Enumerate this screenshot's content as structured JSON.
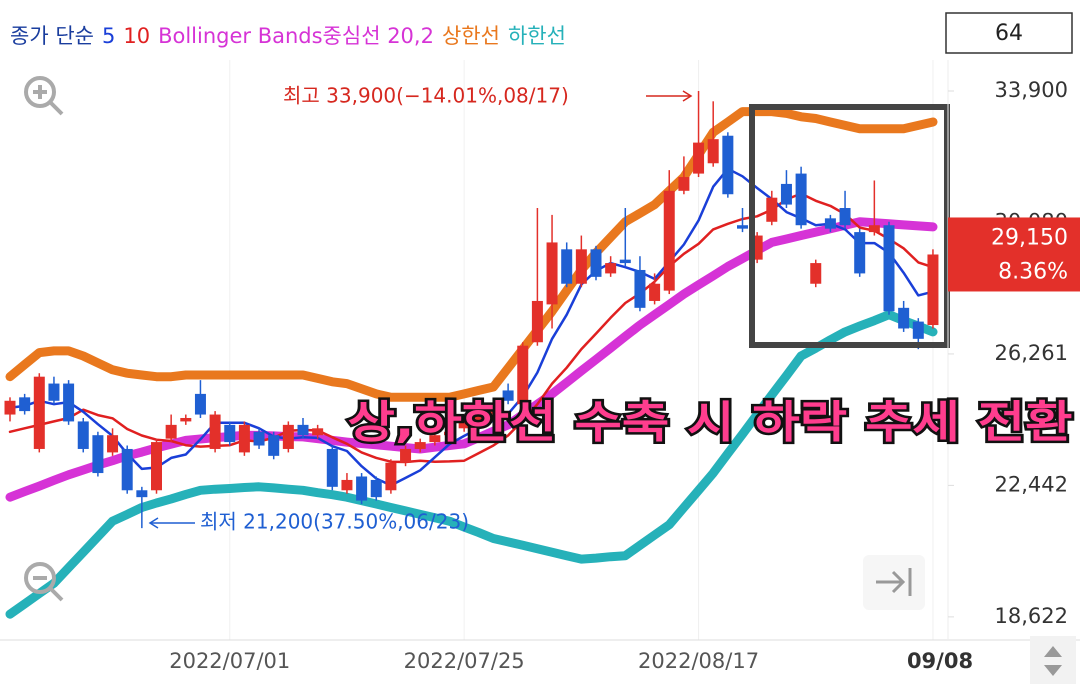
{
  "chart_data": {
    "type": "candlestick",
    "legend_prefix": "종가 단순",
    "categories": [
      null,
      null,
      null,
      null,
      null,
      null,
      null,
      null,
      null,
      null,
      null,
      null,
      null,
      null,
      null,
      "2022/07/01",
      null,
      null,
      null,
      null,
      null,
      null,
      null,
      null,
      null,
      null,
      null,
      null,
      null,
      null,
      null,
      "2022/07/25",
      null,
      null,
      null,
      null,
      null,
      null,
      null,
      null,
      null,
      null,
      null,
      null,
      null,
      null,
      null,
      "2022/08/17",
      null,
      null,
      null,
      null,
      null,
      null,
      null,
      null,
      null,
      null,
      null,
      null,
      null,
      null,
      null,
      "09/08"
    ],
    "open": [
      24500,
      25000,
      23500,
      25400,
      25400,
      24300,
      23900,
      23400,
      23500,
      22300,
      22300,
      23800,
      24300,
      25100,
      23500,
      24200,
      23400,
      24000,
      23900,
      23500,
      24200,
      23900,
      23500,
      22300,
      22700,
      22600,
      22300,
      23100,
      23500,
      23700,
      23900,
      24100,
      24300,
      24500,
      25200,
      24800,
      26600,
      27700,
      29300,
      28300,
      29300,
      28600,
      29000,
      28700,
      27800,
      28100,
      31000,
      31500,
      31800,
      32600,
      30000,
      29000,
      30100,
      31200,
      31500,
      28300,
      30200,
      30500,
      29800,
      29800,
      30000,
      27600,
      27200,
      27100
    ],
    "high": [
      25000,
      25100,
      25700,
      25600,
      25500,
      24400,
      24000,
      24100,
      23600,
      22400,
      23800,
      24500,
      24500,
      25500,
      24600,
      24300,
      24300,
      24100,
      24000,
      24300,
      24400,
      24200,
      23600,
      22800,
      22800,
      22700,
      23200,
      23600,
      23800,
      24000,
      24100,
      24400,
      24700,
      24900,
      25400,
      26600,
      30500,
      30300,
      29500,
      29700,
      29400,
      29100,
      30500,
      29100,
      28600,
      31600,
      32000,
      33900,
      33600,
      32700,
      30500,
      29800,
      31000,
      31600,
      31700,
      29000,
      30300,
      31000,
      29900,
      31300,
      30100,
      27800,
      27300,
      29300
    ],
    "low": [
      24300,
      24500,
      23400,
      24800,
      24200,
      23400,
      22700,
      23300,
      22200,
      21200,
      22200,
      23700,
      24200,
      24400,
      23400,
      23600,
      23300,
      23500,
      23200,
      23400,
      23800,
      23800,
      22300,
      22200,
      21900,
      22000,
      22200,
      23000,
      23400,
      23600,
      23800,
      24000,
      24200,
      24400,
      24800,
      24700,
      26500,
      27000,
      28200,
      28200,
      28400,
      28500,
      28800,
      27500,
      27700,
      28000,
      30900,
      31400,
      31700,
      30800,
      29800,
      28900,
      30000,
      30500,
      29900,
      28200,
      29800,
      29900,
      28500,
      29700,
      27400,
      26900,
      26400,
      27000
    ],
    "close": [
      24900,
      24600,
      25600,
      24900,
      24300,
      23500,
      22800,
      23900,
      22300,
      22100,
      23700,
      24200,
      24400,
      24500,
      24500,
      23700,
      24200,
      23600,
      23300,
      24200,
      23900,
      24100,
      22400,
      22600,
      22000,
      22100,
      23100,
      23500,
      23700,
      23900,
      24000,
      24300,
      24600,
      24800,
      24900,
      26500,
      27800,
      29500,
      28300,
      29300,
      28500,
      28900,
      28900,
      27600,
      28300,
      31000,
      31400,
      32400,
      32500,
      30900,
      29900,
      29700,
      30800,
      30600,
      30000,
      28900,
      29900,
      30000,
      28600,
      30000,
      27500,
      27000,
      26700,
      29150
    ],
    "up_color": "#e3302a",
    "down_color": "#1f5fd2",
    "series": [
      {
        "name": "5",
        "color": "#1a3fd8",
        "values": [
          24700,
          24750,
          24900,
          24800,
          24860,
          24580,
          24220,
          23880,
          23360,
          22920,
          22960,
          23240,
          23340,
          23780,
          24260,
          24260,
          24260,
          24100,
          23860,
          23800,
          23840,
          23820,
          23580,
          23440,
          23000,
          22640,
          22440,
          22660,
          22880,
          23260,
          23640,
          23880,
          24100,
          24320,
          24520,
          25020,
          25720,
          26700,
          27400,
          28280,
          28680,
          28900,
          28780,
          28640,
          28440,
          28940,
          29440,
          30140,
          31120,
          31640,
          31420,
          31080,
          30760,
          30380,
          30200,
          30000,
          30040,
          29880,
          29480,
          29480,
          29200,
          28620,
          27960,
          28070
        ]
      },
      {
        "name": "10",
        "color": "#e02020",
        "values": [
          24000,
          24100,
          24200,
          24300,
          24400,
          24640,
          24485,
          24390,
          24080,
          23890,
          23770,
          23730,
          23610,
          23570,
          23590,
          23610,
          23750,
          23720,
          23820,
          24030,
          24050,
          24040,
          23840,
          23650,
          23400,
          23240,
          23130,
          23120,
          23160,
          23130,
          23140,
          23160,
          23380,
          23600,
          23890,
          24330,
          24800,
          25400,
          25860,
          26400,
          26850,
          27310,
          27740,
          28020,
          28360,
          28810,
          29170,
          29460,
          29880,
          30040,
          30180,
          30260,
          30450,
          30750,
          30920,
          30710,
          30560,
          30320,
          29930,
          29840,
          29600,
          29330,
          28920,
          28780
        ]
      },
      {
        "name": "Bollinger Bands중심선 20,2",
        "color": "#d633d6",
        "values": [
          22100,
          22260,
          22420,
          22590,
          22750,
          22890,
          23030,
          23160,
          23300,
          23410,
          23530,
          23640,
          23750,
          23790,
          23830,
          23860,
          23900,
          23890,
          23880,
          23860,
          23850,
          23800,
          23750,
          23700,
          23660,
          23620,
          23580,
          23540,
          23500,
          23550,
          23600,
          23650,
          23830,
          24020,
          24200,
          24500,
          24800,
          25100,
          25430,
          25770,
          26100,
          26430,
          26770,
          27100,
          27400,
          27700,
          28000,
          28270,
          28530,
          28800,
          29030,
          29270,
          29500,
          29600,
          29700,
          29800,
          29900,
          30000,
          30100,
          30070,
          30040,
          30010,
          29980,
          29950
        ]
      },
      {
        "name": "상한선",
        "color": "#e9781e",
        "values": [
          25600,
          25950,
          26300,
          26350,
          26350,
          26200,
          26000,
          25800,
          25700,
          25650,
          25600,
          25600,
          25650,
          25650,
          25650,
          25650,
          25650,
          25650,
          25650,
          25650,
          25650,
          25550,
          25450,
          25400,
          25250,
          25100,
          25000,
          25000,
          25000,
          25000,
          25000,
          25100,
          25200,
          25300,
          25850,
          26400,
          26950,
          27500,
          28100,
          28700,
          29200,
          29650,
          30100,
          30350,
          30600,
          31000,
          31400,
          32050,
          32700,
          33000,
          33300,
          33300,
          33300,
          33250,
          33150,
          33100,
          33000,
          32900,
          32800,
          32800,
          32800,
          32800,
          32900,
          33000
        ]
      },
      {
        "name": "하한선",
        "color": "#26b1b9",
        "values": [
          18700,
          19000,
          19300,
          19600,
          20050,
          20500,
          20950,
          21400,
          21600,
          21800,
          21930,
          22050,
          22180,
          22300,
          22330,
          22350,
          22380,
          22400,
          22370,
          22330,
          22300,
          22230,
          22170,
          22100,
          22000,
          21900,
          21800,
          21700,
          21600,
          21500,
          21400,
          21230,
          21070,
          20900,
          20800,
          20700,
          20600,
          20500,
          20400,
          20300,
          20330,
          20370,
          20400,
          20700,
          21000,
          21300,
          21800,
          22300,
          22800,
          23370,
          23930,
          24500,
          25070,
          25630,
          26200,
          26430,
          26670,
          26900,
          27070,
          27230,
          27400,
          27230,
          27070,
          26900
        ]
      }
    ],
    "ylim": [
      17950,
      34800
    ],
    "yticks": [
      {
        "value": 18622,
        "label": "18,622"
      },
      {
        "value": 22442,
        "label": "22,442"
      },
      {
        "value": 26261,
        "label": "26,261"
      },
      {
        "value": 30080,
        "label": "30,080"
      },
      {
        "value": 33900,
        "label": "33,900"
      }
    ],
    "grid": false,
    "high_annotation": "최고 33,900(−14.01%,08/17)",
    "low_annotation": "최저 21,200(37.50%,06/23)",
    "overlay_text": "상,하한선 수축 시 하락 추세 전환",
    "last_price_label": "29,150",
    "change_label": "8.36%",
    "visible_count": "64"
  }
}
